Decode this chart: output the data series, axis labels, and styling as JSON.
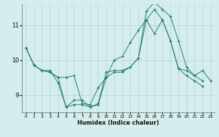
{
  "title": "",
  "xlabel": "Humidex (Indice chaleur)",
  "background_color": "#d5edec",
  "grid_color": "#b8d8d6",
  "line_color": "#1d7a6e",
  "xlim": [
    -0.5,
    23.5
  ],
  "ylim": [
    8.5,
    11.6
  ],
  "yticks": [
    9,
    10,
    11
  ],
  "xticks": [
    0,
    1,
    2,
    3,
    4,
    5,
    6,
    7,
    8,
    9,
    10,
    11,
    12,
    13,
    14,
    15,
    16,
    17,
    18,
    19,
    20,
    21,
    22,
    23
  ],
  "series": [
    {
      "x": [
        0,
        1,
        2,
        3,
        4,
        5,
        6,
        7,
        8,
        9,
        10,
        11,
        12,
        13,
        14,
        15,
        16,
        17,
        18,
        19,
        20,
        21,
        22,
        23
      ],
      "y": [
        10.35,
        9.85,
        9.7,
        9.65,
        9.5,
        9.5,
        9.55,
        8.75,
        8.72,
        9.2,
        9.5,
        10.0,
        10.1,
        10.5,
        10.85,
        11.15,
        10.75,
        11.15,
        10.55,
        9.75,
        9.7,
        9.55,
        9.7,
        9.4
      ]
    },
    {
      "x": [
        0,
        1,
        2,
        3,
        4,
        5,
        6,
        7,
        8,
        9,
        10,
        11,
        12,
        13,
        14,
        15,
        16,
        17,
        18,
        19,
        20,
        21,
        22
      ],
      "y": [
        10.35,
        9.85,
        9.7,
        9.7,
        9.35,
        8.65,
        8.85,
        8.85,
        8.65,
        8.75,
        9.65,
        9.7,
        9.7,
        9.8,
        10.05,
        11.4,
        11.65,
        11.45,
        11.25,
        10.55,
        9.8,
        9.55,
        9.4
      ]
    },
    {
      "x": [
        0,
        1,
        2,
        3,
        4,
        5,
        6,
        7,
        8,
        9,
        10,
        11,
        12,
        13,
        14,
        15,
        16,
        17,
        18,
        19,
        20,
        21,
        22
      ],
      "y": [
        10.35,
        9.85,
        9.7,
        9.65,
        9.5,
        8.65,
        8.72,
        8.72,
        8.65,
        8.72,
        9.5,
        9.65,
        9.65,
        9.8,
        10.05,
        11.15,
        11.45,
        11.15,
        10.55,
        9.75,
        9.55,
        9.4,
        9.25
      ]
    }
  ]
}
